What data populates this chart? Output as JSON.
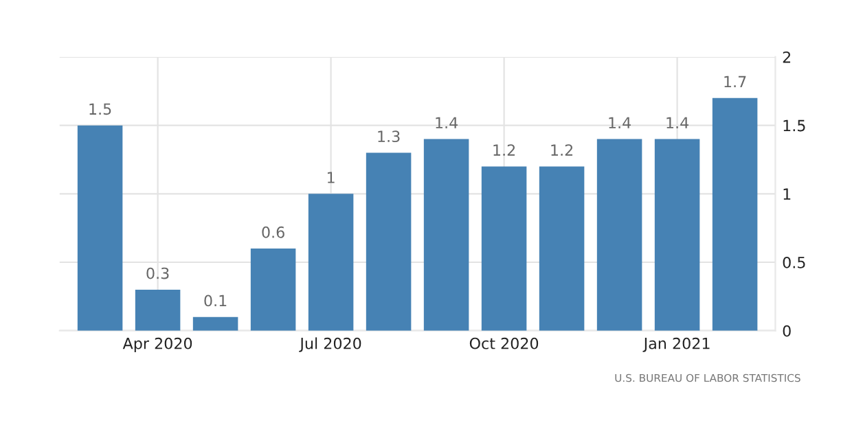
{
  "chart_data": {
    "type": "bar",
    "categories": [
      null,
      "Apr 2020",
      null,
      null,
      "Jul 2020",
      null,
      null,
      "Oct 2020",
      null,
      null,
      "Jan 2021",
      null
    ],
    "values": [
      1.5,
      0.3,
      0.1,
      0.6,
      1,
      1.3,
      1.4,
      1.2,
      1.2,
      1.4,
      1.4,
      1.7
    ],
    "color": "#4682b4",
    "ylim": [
      0,
      2
    ],
    "yticks": [
      0,
      0.5,
      1,
      1.5,
      2
    ],
    "grid": true,
    "data_labels": true,
    "annotations": [
      "U.S. BUREAU OF LABOR STATISTICS"
    ]
  }
}
